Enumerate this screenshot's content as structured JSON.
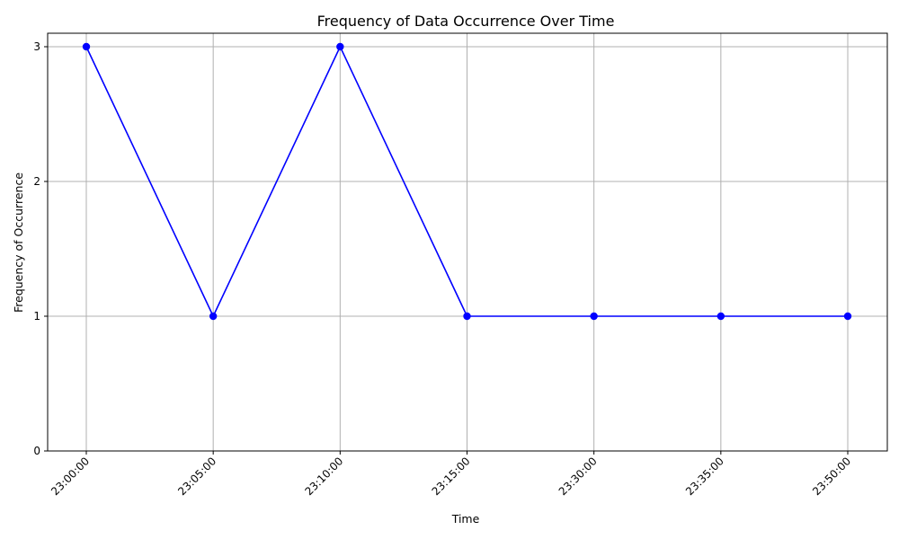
{
  "chart_data": {
    "type": "line",
    "title": "Frequency of Data Occurrence Over Time",
    "xlabel": "Time",
    "ylabel": "Frequency of Occurrence",
    "categories": [
      "23:00:00",
      "23:05:00",
      "23:10:00",
      "23:15:00",
      "23:30:00",
      "23:35:00",
      "23:50:00"
    ],
    "series": [
      {
        "values": [
          3,
          1,
          3,
          1,
          1,
          1,
          1
        ],
        "color": "#0000ff",
        "marker": "circle"
      }
    ],
    "ylim": [
      0,
      3.1
    ],
    "yticks": [
      0,
      1,
      2,
      3
    ],
    "grid": true,
    "xtick_rotation": 45
  }
}
